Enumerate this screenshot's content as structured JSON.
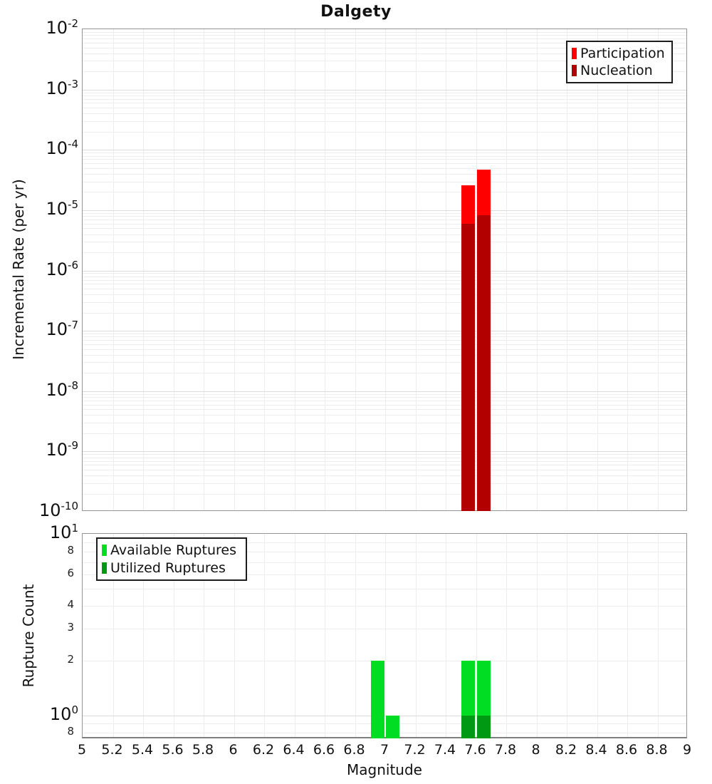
{
  "title": "Dalgety",
  "top_panel": {
    "ylabel": "Incremental Rate (per yr)",
    "legend": [
      {
        "label": "Participation",
        "color": "#ff0000"
      },
      {
        "label": "Nucleation",
        "color": "#b20000"
      }
    ],
    "y_major_exponents": [
      -2,
      -3,
      -4,
      -5,
      -6,
      -7,
      -8,
      -9,
      -10
    ]
  },
  "bottom_panel": {
    "ylabel": "Rupture Count",
    "legend": [
      {
        "label": "Available Ruptures",
        "color": "#00dd22"
      },
      {
        "label": "Utilized Ruptures",
        "color": "#009914"
      }
    ],
    "y_major_exponents": [
      1,
      0
    ],
    "y_minor_ticks": [
      {
        "label": "8",
        "value": 8
      },
      {
        "label": "6",
        "value": 6
      },
      {
        "label": "4",
        "value": 4
      },
      {
        "label": "3",
        "value": 3
      },
      {
        "label": "2",
        "value": 2
      },
      {
        "label": "8",
        "value": 0.8
      }
    ]
  },
  "x_axis": {
    "label": "Magnitude",
    "tick_labels": [
      "5",
      "5.2",
      "5.4",
      "5.6",
      "5.8",
      "6",
      "6.2",
      "6.4",
      "6.6",
      "6.8",
      "7",
      "7.2",
      "7.4",
      "7.6",
      "7.8",
      "8",
      "8.2",
      "8.4",
      "8.6",
      "8.8",
      "9"
    ]
  },
  "chart_data": [
    {
      "type": "bar",
      "title": "Dalgety",
      "xlabel": "Magnitude",
      "ylabel": "Incremental Rate (per yr)",
      "xlim": [
        5,
        9
      ],
      "ylim": [
        1e-10,
        0.01
      ],
      "yscale": "log",
      "bar_width": 0.1,
      "grid": true,
      "legend_position": "top-right",
      "series": [
        {
          "name": "Participation",
          "color": "#ff0000",
          "points": [
            {
              "x": 7.55,
              "y": 2.6e-05
            },
            {
              "x": 7.65,
              "y": 4.7e-05
            }
          ]
        },
        {
          "name": "Nucleation",
          "color": "#b20000",
          "points": [
            {
              "x": 7.55,
              "y": 6e-06
            },
            {
              "x": 7.65,
              "y": 8.2e-06
            }
          ]
        }
      ]
    },
    {
      "type": "bar",
      "xlabel": "Magnitude",
      "ylabel": "Rupture Count",
      "xlim": [
        5,
        9
      ],
      "ylim": [
        0.74,
        10
      ],
      "yscale": "log",
      "bar_width": 0.1,
      "grid": true,
      "legend_position": "top-left",
      "series": [
        {
          "name": "Available Ruptures",
          "color": "#00dd22",
          "points": [
            {
              "x": 6.95,
              "y": 2
            },
            {
              "x": 7.05,
              "y": 1
            },
            {
              "x": 7.55,
              "y": 2
            },
            {
              "x": 7.65,
              "y": 2
            }
          ]
        },
        {
          "name": "Utilized Ruptures",
          "color": "#009914",
          "points": [
            {
              "x": 7.55,
              "y": 1
            },
            {
              "x": 7.65,
              "y": 1
            }
          ]
        }
      ]
    }
  ]
}
